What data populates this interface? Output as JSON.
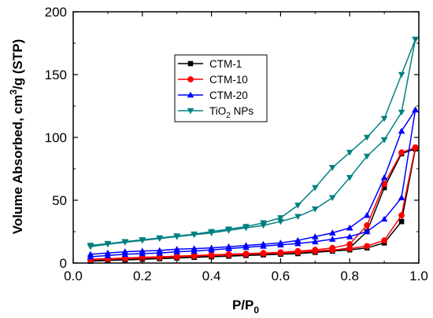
{
  "chart_data": {
    "type": "line",
    "xlabel": "P/P",
    "xlabel_sub": "0",
    "ylabel_pre": "Volume Absorbed, cm",
    "ylabel_sup": "3",
    "ylabel_post": "/g (STP)",
    "xlim": [
      0.0,
      1.0
    ],
    "ylim": [
      0,
      200
    ],
    "xticks": [
      "0.0",
      "0.2",
      "0.4",
      "0.6",
      "0.8",
      "1.0"
    ],
    "yticks": [
      "0",
      "50",
      "100",
      "150",
      "200"
    ],
    "grid": false,
    "legend_position": "upper-left",
    "series": [
      {
        "name": "CTM-1",
        "color": "#000000",
        "marker": "square",
        "x": [
          0.05,
          0.1,
          0.15,
          0.2,
          0.25,
          0.3,
          0.35,
          0.4,
          0.45,
          0.5,
          0.55,
          0.6,
          0.65,
          0.7,
          0.75,
          0.8,
          0.85,
          0.9,
          0.95,
          0.99,
          0.99,
          0.95,
          0.9,
          0.85,
          0.8,
          0.75,
          0.7,
          0.65,
          0.6,
          0.55,
          0.5,
          0.45,
          0.4,
          0.35,
          0.3,
          0.25,
          0.2,
          0.15,
          0.1,
          0.05
        ],
        "y": [
          1.5,
          2,
          2.5,
          3,
          3.5,
          4,
          4.5,
          5,
          5.5,
          6,
          6.5,
          7,
          7.5,
          8.5,
          9.5,
          10.5,
          12,
          16,
          33,
          91,
          91,
          87,
          60,
          25,
          12,
          10,
          9,
          8,
          7.5,
          7,
          6.5,
          6,
          5.5,
          5,
          4.5,
          4,
          3.5,
          3,
          2.5,
          2
        ]
      },
      {
        "name": "CTM-10",
        "color": "#ff0000",
        "marker": "circle",
        "x": [
          0.05,
          0.1,
          0.15,
          0.2,
          0.25,
          0.3,
          0.35,
          0.4,
          0.45,
          0.5,
          0.55,
          0.6,
          0.65,
          0.7,
          0.75,
          0.8,
          0.85,
          0.9,
          0.95,
          0.99,
          0.99,
          0.95,
          0.9,
          0.85,
          0.8,
          0.75,
          0.7,
          0.65,
          0.6,
          0.55,
          0.5,
          0.45,
          0.4,
          0.35,
          0.3,
          0.25,
          0.2,
          0.15,
          0.1,
          0.05
        ],
        "y": [
          2.5,
          3,
          3.5,
          4,
          4.5,
          5,
          5.5,
          6,
          6.5,
          7,
          7.5,
          8,
          8.5,
          9.5,
          10.5,
          11.5,
          13.5,
          18,
          38,
          92,
          92,
          88,
          63,
          30,
          15,
          12,
          10.5,
          9.5,
          8.5,
          8,
          7.5,
          7,
          6.5,
          6,
          5.5,
          5,
          4.5,
          4,
          3.5,
          3
        ]
      },
      {
        "name": "CTM-20",
        "color": "#0000ff",
        "marker": "triangle-up",
        "x": [
          0.05,
          0.1,
          0.15,
          0.2,
          0.25,
          0.3,
          0.35,
          0.4,
          0.45,
          0.5,
          0.55,
          0.6,
          0.65,
          0.7,
          0.75,
          0.8,
          0.85,
          0.9,
          0.95,
          0.99,
          0.99,
          0.95,
          0.9,
          0.85,
          0.8,
          0.75,
          0.7,
          0.65,
          0.6,
          0.55,
          0.5,
          0.45,
          0.4,
          0.35,
          0.3,
          0.25,
          0.2,
          0.15,
          0.1,
          0.05
        ],
        "y": [
          5,
          6,
          7,
          7.5,
          8,
          9,
          9.5,
          10.5,
          11.5,
          12.5,
          13.5,
          14.5,
          15.5,
          17,
          19,
          21,
          25,
          35,
          52,
          122,
          122,
          105,
          68,
          38,
          28,
          24,
          21,
          18,
          16,
          15,
          14,
          13,
          12,
          11.5,
          11,
          10,
          9.5,
          9,
          8,
          7
        ]
      },
      {
        "name": "TiO",
        "name_sub": "2",
        "name_post": " NPs",
        "color": "#008080",
        "marker": "triangle-down",
        "x": [
          0.05,
          0.1,
          0.15,
          0.2,
          0.25,
          0.3,
          0.35,
          0.4,
          0.45,
          0.5,
          0.55,
          0.6,
          0.65,
          0.7,
          0.75,
          0.8,
          0.85,
          0.9,
          0.95,
          0.99,
          0.99,
          0.95,
          0.9,
          0.85,
          0.8,
          0.75,
          0.7,
          0.65,
          0.6,
          0.55,
          0.5,
          0.45,
          0.4,
          0.35,
          0.3,
          0.25,
          0.2,
          0.15,
          0.1,
          0.05
        ],
        "y": [
          13,
          15,
          16.5,
          18,
          19.5,
          21,
          22.5,
          24,
          26,
          28,
          30,
          33,
          37,
          43,
          52,
          68,
          85,
          98,
          120,
          178,
          178,
          150,
          115,
          100,
          88,
          76,
          60,
          46,
          36,
          32,
          29,
          27,
          25,
          23,
          21.5,
          20,
          18.5,
          17,
          15.5,
          14
        ]
      }
    ]
  }
}
